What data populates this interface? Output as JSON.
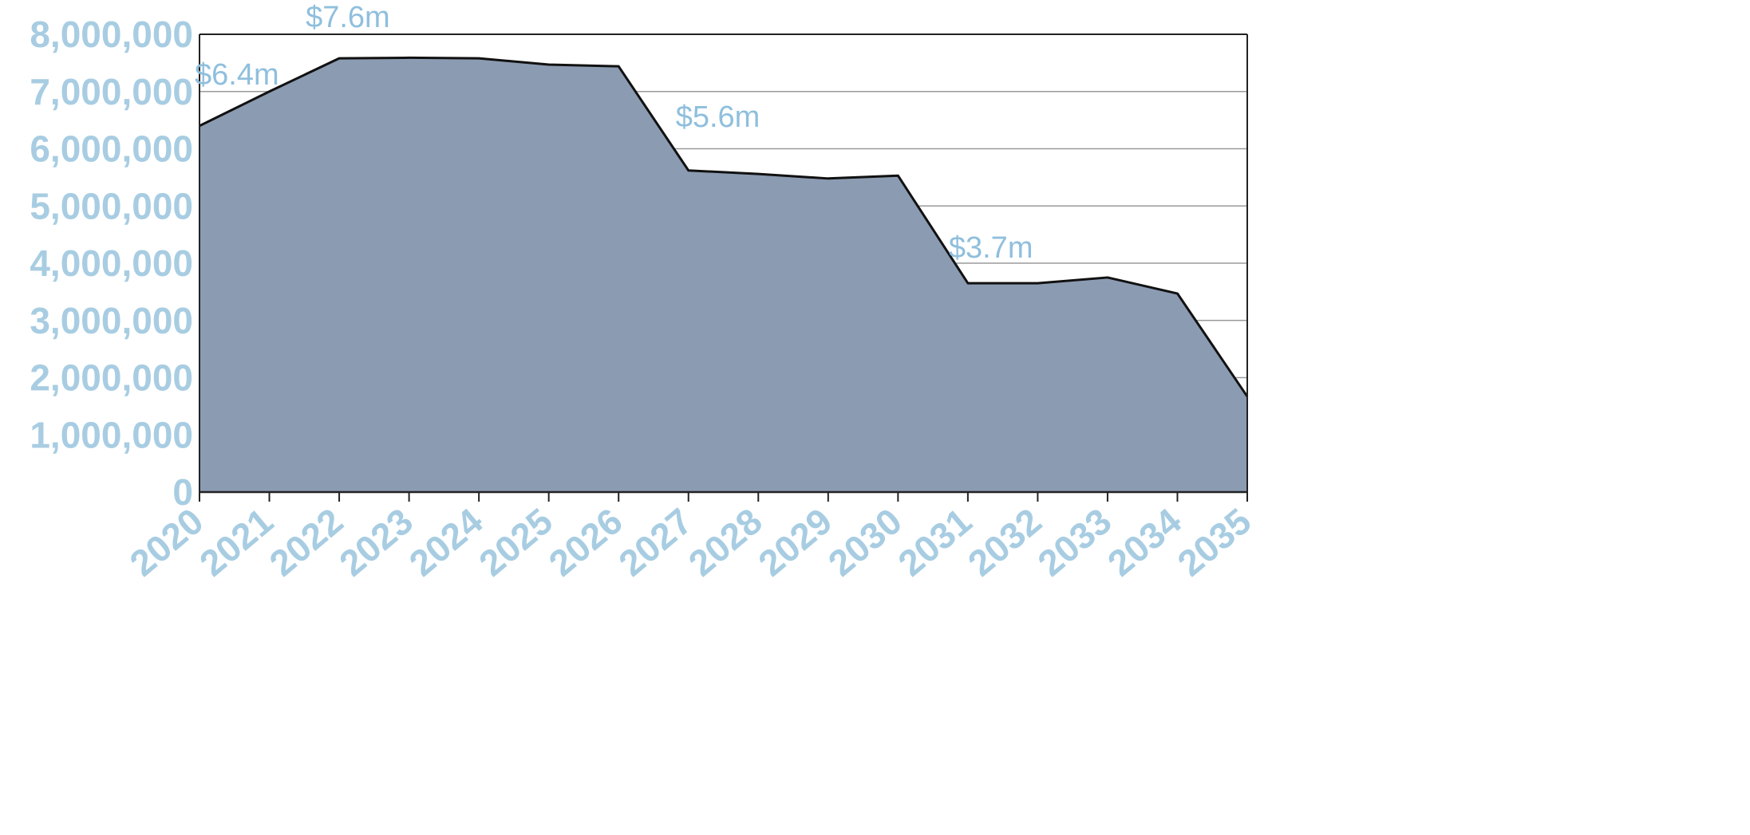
{
  "chart_data": {
    "type": "area",
    "title": "",
    "xlabel": "",
    "ylabel": "",
    "x": [
      2020,
      2021,
      2022,
      2023,
      2024,
      2025,
      2026,
      2027,
      2028,
      2029,
      2030,
      2031,
      2032,
      2033,
      2034,
      2035
    ],
    "series": [
      {
        "values": [
          6400000,
          7000000,
          7580000,
          7590000,
          7580000,
          7470000,
          7440000,
          5620000,
          5560000,
          5480000,
          5530000,
          3650000,
          3650000,
          3750000,
          3470000,
          1670000
        ]
      }
    ],
    "ylim": [
      0,
      8000000
    ],
    "yticks": [
      0,
      1000000,
      2000000,
      3000000,
      4000000,
      5000000,
      6000000,
      7000000,
      8000000
    ],
    "ytick_labels": [
      "0",
      "1,000,000",
      "2,000,000",
      "3,000,000",
      "4,000,000",
      "5,000,000",
      "6,000,000",
      "7,000,000",
      "8,000,000"
    ],
    "xtick_labels": [
      "2020",
      "2021",
      "2022",
      "2023",
      "2024",
      "2025",
      "2026",
      "2027",
      "2028",
      "2029",
      "2030",
      "2031",
      "2032",
      "2033",
      "2034",
      "2035"
    ],
    "annotations": [
      {
        "text": "$6.4m",
        "x": 2020,
        "y": 6400000
      },
      {
        "text": "$7.6m",
        "x": 2022,
        "y": 7580000
      },
      {
        "text": "$5.6m",
        "x": 2027,
        "y": 5620000
      },
      {
        "text": "$3.7m",
        "x": 2031,
        "y": 3650000
      }
    ],
    "grid": true,
    "legend": "none",
    "colors": {
      "area_fill": "#8b9bb2",
      "area_line": "#111111",
      "tick_label": "#a8cde2",
      "annotation": "#8fbfdd",
      "grid": "#9a9a9a",
      "frame": "#222222"
    }
  }
}
